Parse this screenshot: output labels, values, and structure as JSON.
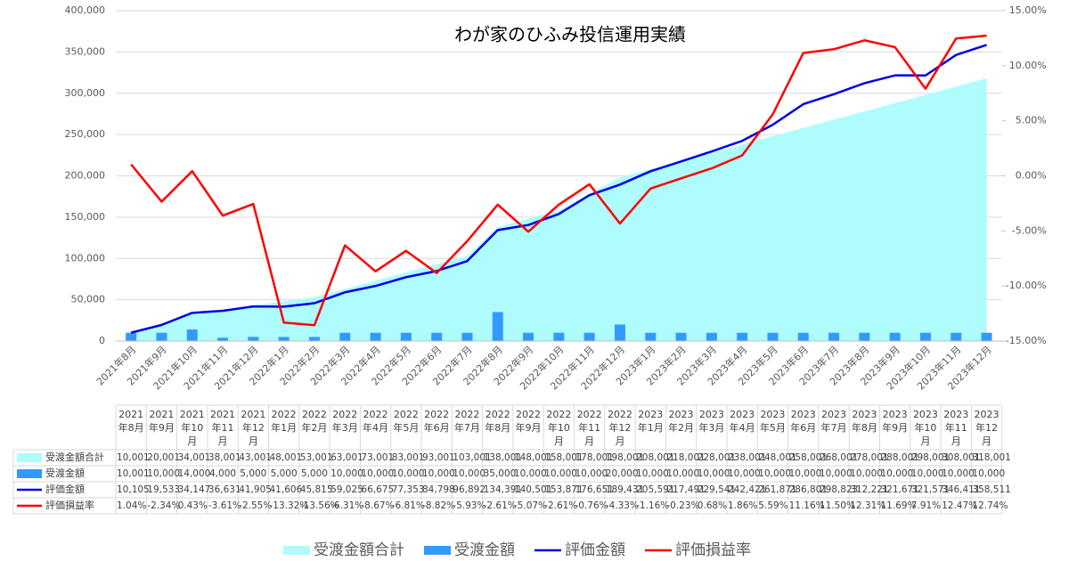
{
  "chart_data": {
    "type": "combo",
    "title": "わが家のひふみ投信運用実績",
    "categories": [
      "2021年8月",
      "2021年9月",
      "2021年10月",
      "2021年11月",
      "2021年12月",
      "2022年1月",
      "2022年2月",
      "2022年3月",
      "2022年4月",
      "2022年5月",
      "2022年6月",
      "2022年7月",
      "2022年8月",
      "2022年9月",
      "2022年10月",
      "2022年11月",
      "2022年12月",
      "2023年1月",
      "2023年2月",
      "2023年3月",
      "2023年4月",
      "2023年5月",
      "2023年6月",
      "2023年7月",
      "2023年8月",
      "2023年9月",
      "2023年10月",
      "2023年11月",
      "2023年12月"
    ],
    "ylim": [
      0,
      400000
    ],
    "yticks": [
      {
        "value": 0,
        "label": "0"
      },
      {
        "value": 50000,
        "label": "50,000"
      },
      {
        "value": 100000,
        "label": "100,000"
      },
      {
        "value": 150000,
        "label": "150,000"
      },
      {
        "value": 200000,
        "label": "200,000"
      },
      {
        "value": 250000,
        "label": "250,000"
      },
      {
        "value": 300000,
        "label": "300,000"
      },
      {
        "value": 350000,
        "label": "350,000"
      },
      {
        "value": 400000,
        "label": "400,000"
      }
    ],
    "y2lim": [
      -15,
      15
    ],
    "y2ticks": [
      {
        "value": -15,
        "label": "-15.00%"
      },
      {
        "value": -10,
        "label": "-10.00%"
      },
      {
        "value": -5,
        "label": "-5.00%"
      },
      {
        "value": 0,
        "label": "0.00%"
      },
      {
        "value": 5,
        "label": "5.00%"
      },
      {
        "value": 10,
        "label": "10.00%"
      },
      {
        "value": 15,
        "label": "15.00%"
      }
    ],
    "grid": true,
    "legend": "bottom",
    "series": [
      {
        "name": "受渡金額合計",
        "type": "area",
        "color": "#aefcfc",
        "values": [
          10001,
          20001,
          34001,
          38001,
          43001,
          48001,
          53001,
          63001,
          73001,
          83001,
          93001,
          103001,
          138001,
          148001,
          158001,
          178001,
          198001,
          208001,
          218001,
          228001,
          238001,
          248001,
          258001,
          268001,
          278001,
          288001,
          298001,
          308001,
          318001
        ],
        "value_labels": [
          "10,001",
          "20,001",
          "34,001",
          "38,001",
          "43,001",
          "48,001",
          "53,001",
          "63,001",
          "73,001",
          "83,001",
          "93,001",
          "103,001",
          "138,001",
          "148,001",
          "158,001",
          "178,001",
          "198,001",
          "208,001",
          "218,001",
          "228,001",
          "238,001",
          "248,001",
          "258,001",
          "268,001",
          "278,001",
          "288,001",
          "298,001",
          "308,001",
          "318,001"
        ]
      },
      {
        "name": "受渡金額",
        "type": "bar",
        "color": "#3399ff",
        "values": [
          10001,
          10000,
          14000,
          4000,
          5000,
          5000,
          5000,
          10000,
          10000,
          10000,
          10000,
          10000,
          35000,
          10000,
          10000,
          10000,
          20000,
          10000,
          10000,
          10000,
          10000,
          10000,
          10000,
          10000,
          10000,
          10000,
          10000,
          10000,
          10000
        ],
        "value_labels": [
          "10,001",
          "10,000",
          "14,000",
          "4,000",
          "5,000",
          "5,000",
          "5,000",
          "10,000",
          "10,000",
          "10,000",
          "10,000",
          "10,000",
          "35,000",
          "10,000",
          "10,000",
          "10,000",
          "20,000",
          "10,000",
          "10,000",
          "10,000",
          "10,000",
          "10,000",
          "10,000",
          "10,000",
          "10,000",
          "10,000",
          "10,000",
          "10,000",
          "10,000"
        ]
      },
      {
        "name": "評価金額",
        "type": "line",
        "color": "#0000e6",
        "values": [
          10105,
          19533,
          34147,
          36631,
          41905,
          41606,
          45815,
          59025,
          66675,
          77353,
          84798,
          96892,
          134391,
          140501,
          153871,
          176651,
          189431,
          205591,
          217491,
          229541,
          242421,
          261871,
          286801,
          298823,
          312221,
          321671,
          321571,
          346411,
          358511
        ],
        "value_labels": [
          "10,105",
          "19,533",
          "34,147",
          "36,631",
          "41,905",
          "41,606",
          "45,815",
          "59,025",
          "66,675",
          "77,353",
          "84,798",
          "96,892",
          "134,391",
          "140,501",
          "153,871",
          "176,651",
          "189,431",
          "205,591",
          "217,491",
          "229,541",
          "242,421",
          "261,871",
          "286,801",
          "298,823",
          "312,221",
          "321,671",
          "321,571",
          "346,411",
          "358,511"
        ]
      },
      {
        "name": "評価損益率",
        "type": "line",
        "axis": "y2",
        "color": "#ff0000",
        "values": [
          1.04,
          -2.34,
          0.43,
          -3.61,
          -2.55,
          -13.32,
          -13.56,
          -6.31,
          -8.67,
          -6.81,
          -8.82,
          -5.93,
          -2.61,
          -5.07,
          -2.61,
          -0.76,
          -4.33,
          -1.16,
          -0.23,
          0.68,
          1.86,
          5.59,
          11.16,
          11.5,
          12.31,
          11.69,
          7.91,
          12.47,
          12.74
        ],
        "value_labels": [
          "1.04%",
          "-2.34%",
          "0.43%",
          "-3.61%",
          "-2.55%",
          "-13.32%",
          "-13.56%",
          "-6.31%",
          "-8.67%",
          "-6.81%",
          "-8.82%",
          "-5.93%",
          "-2.61%",
          "-5.07%",
          "-2.61%",
          "-0.76%",
          "-4.33%",
          "-1.16%",
          "-0.23%",
          "0.68%",
          "1.86%",
          "5.59%",
          "11.16%",
          "11.50%",
          "12.31%",
          "11.69%",
          "7.91%",
          "12.47%",
          "12.74%"
        ]
      }
    ]
  }
}
